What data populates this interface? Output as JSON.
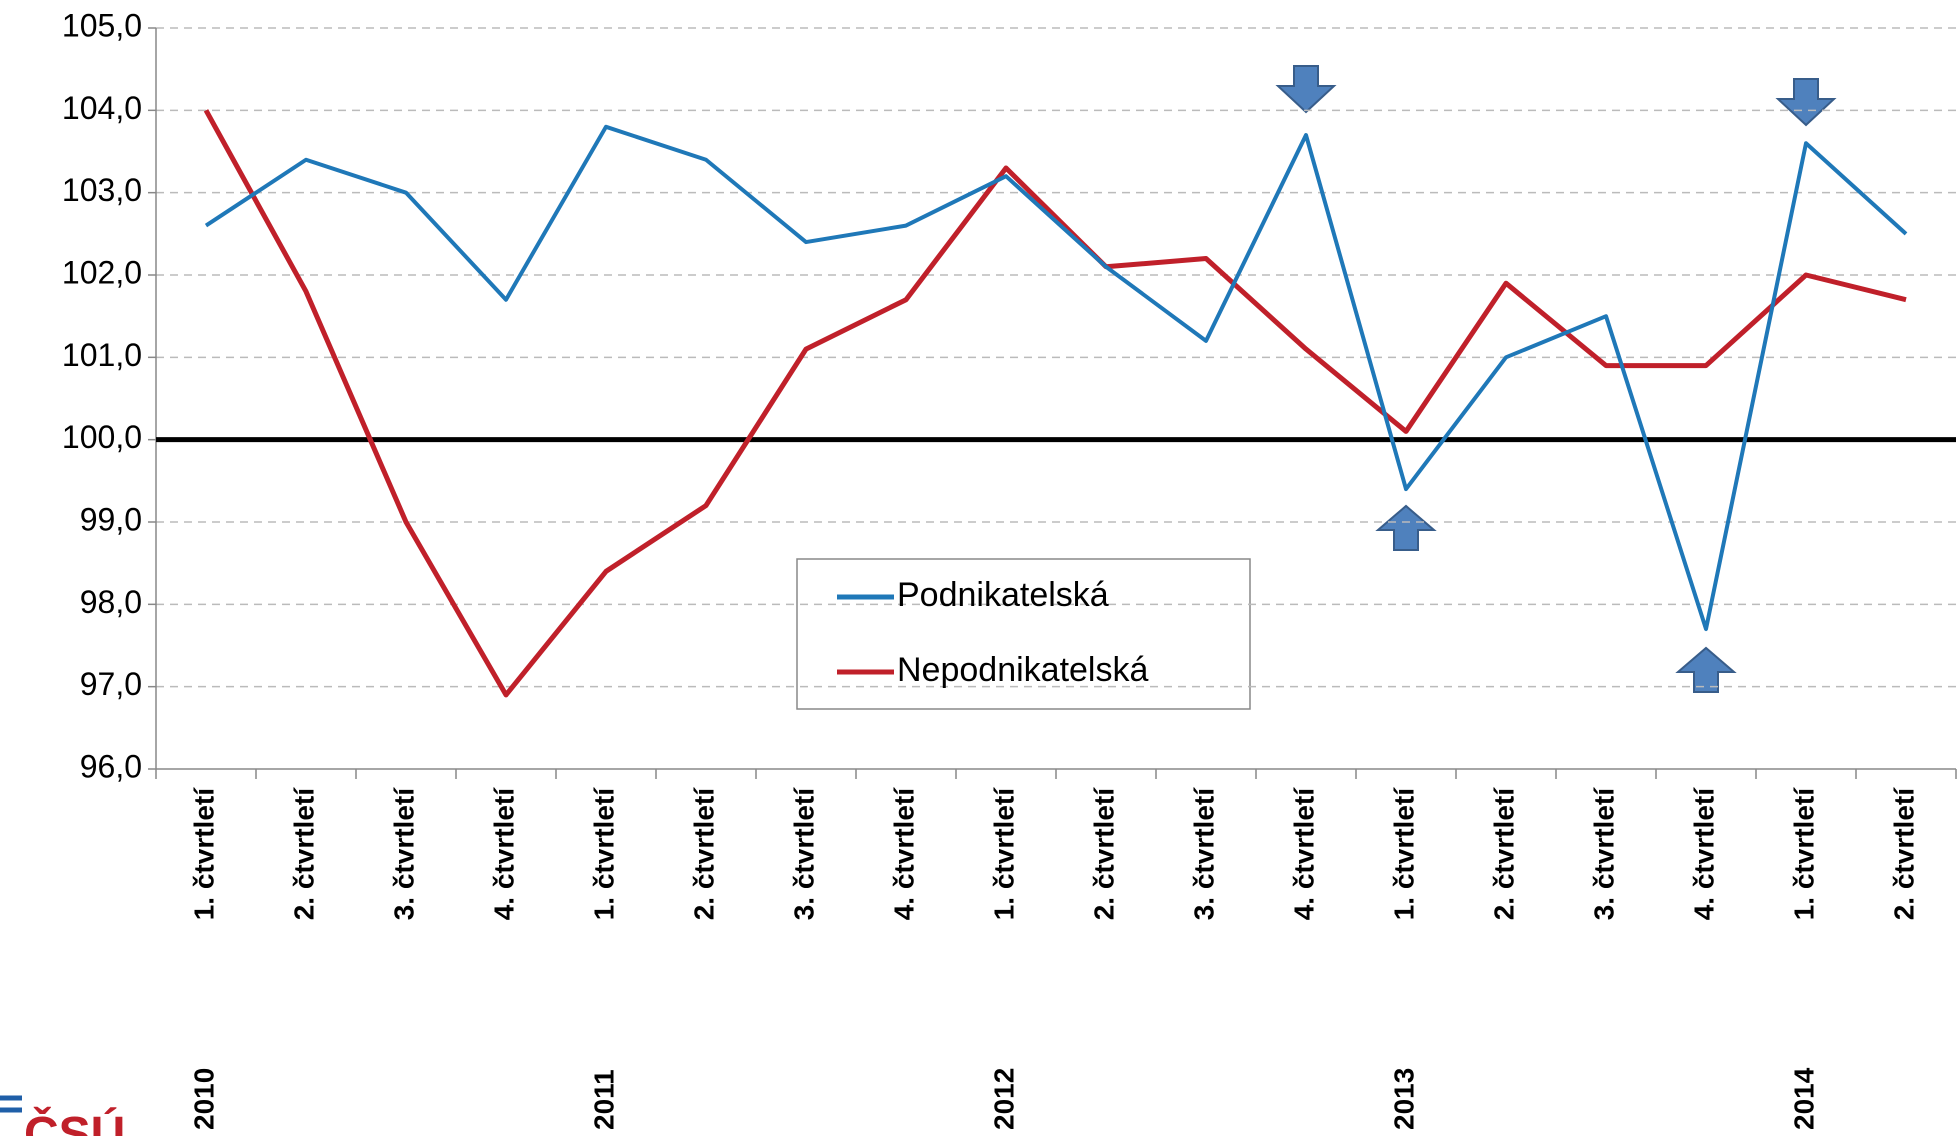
{
  "chart_data": {
    "type": "line",
    "categories": [
      "1. čtvrtletí",
      "2. čtvrtletí",
      "3. čtvrtletí",
      "4. čtvrtletí",
      "1. čtvrtletí",
      "2. čtvrtletí",
      "3. čtvrtletí",
      "4. čtvrtletí",
      "1. čtvrtletí",
      "2. čtvrtletí",
      "3. čtvrtletí",
      "4. čtvrtletí",
      "1. čtvrtletí",
      "2. čtvrtletí",
      "3. čtvrtletí",
      "4. čtvrtletí",
      "1. čtvrtletí",
      "2. čtvrtletí"
    ],
    "year_groups": [
      "2010",
      null,
      null,
      null,
      "2011",
      null,
      null,
      null,
      "2012",
      null,
      null,
      null,
      "2013",
      null,
      null,
      null,
      "2014",
      null
    ],
    "series": [
      {
        "name": "Podnikatelská",
        "color": "#1f78b8",
        "values": [
          102.6,
          103.4,
          103.0,
          101.7,
          103.8,
          103.4,
          102.4,
          102.6,
          103.2,
          102.1,
          101.2,
          103.7,
          99.4,
          101.0,
          101.5,
          97.7,
          103.6,
          102.5
        ]
      },
      {
        "name": "Nepodnikatelská",
        "color": "#c0202a",
        "values": [
          104.0,
          101.8,
          99.0,
          96.9,
          98.4,
          99.2,
          101.1,
          101.7,
          103.3,
          102.1,
          102.2,
          101.1,
          100.1,
          101.9,
          100.9,
          100.9,
          102.0,
          101.7
        ]
      }
    ],
    "reference_line": 100,
    "ylim": [
      96,
      105
    ],
    "yticks": [
      {
        "value": 96,
        "label": "96,0"
      },
      {
        "value": 97,
        "label": "97,0"
      },
      {
        "value": 98,
        "label": "98,0"
      },
      {
        "value": 99,
        "label": "99,0"
      },
      {
        "value": 100,
        "label": "100,0"
      },
      {
        "value": 101,
        "label": "101,0"
      },
      {
        "value": 102,
        "label": "102,0"
      },
      {
        "value": 103,
        "label": "103,0"
      },
      {
        "value": 104,
        "label": "104,0"
      },
      {
        "value": 105,
        "label": "105,0"
      }
    ],
    "grid": true,
    "logo": "ČSÚ"
  }
}
